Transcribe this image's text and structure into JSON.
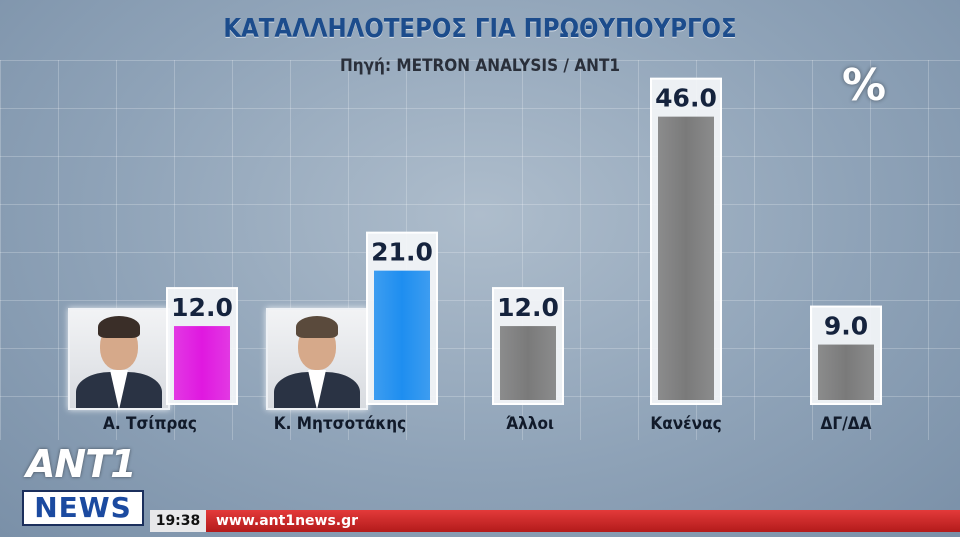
{
  "title": "ΚΑΤΑΛΛΗΛΟΤΕΡΟΣ ΓΙΑ ΠΡΩΘΥΠΟΥΡΓΟΣ",
  "source": "Πηγή: METRON ANALYSIS / ANT1",
  "unit": "%",
  "chart_data": {
    "type": "bar",
    "title": "ΚΑΤΑΛΛΗΛΟΤΕΡΟΣ ΓΙΑ ΠΡΩΘΥΠΟΥΡΓΟΣ",
    "categories": [
      "Α. Τσίπρας",
      "Κ. Μητσοτάκης",
      "Άλλοι",
      "Κανένας",
      "ΔΓ/ΔΑ"
    ],
    "values": [
      12.0,
      21.0,
      12.0,
      46.0,
      9.0
    ],
    "value_labels": [
      "12.0",
      "21.0",
      "12.0",
      "46.0",
      "9.0"
    ],
    "colors": [
      "#e018e0",
      "#1e8ef0",
      "#7a7a7a",
      "#7a7a7a",
      "#7a7a7a"
    ],
    "ylim": [
      0,
      50
    ],
    "grid": true,
    "legend": "none"
  },
  "photos": {
    "tsipras": "portrait-tsipras",
    "mitsotakis": "portrait-mitsotakis"
  },
  "branding": {
    "logo_top": "ANT1",
    "logo_bottom": "NEWS",
    "time": "19:38",
    "url": "www.ant1news.gr"
  }
}
